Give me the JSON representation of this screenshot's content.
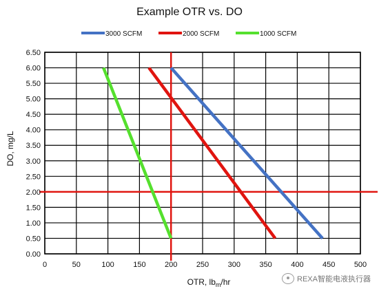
{
  "chart_data": {
    "type": "line",
    "title": "Example OTR vs. DO",
    "xlabel_main": "OTR, lb",
    "xlabel_sub": "m",
    "xlabel_tail": "/hr",
    "ylabel": "DO, mg/L",
    "xlim": [
      0,
      500
    ],
    "ylim": [
      0,
      6.5
    ],
    "xticks": [
      0,
      50,
      100,
      150,
      200,
      250,
      300,
      350,
      400,
      450,
      500
    ],
    "yticks": [
      0.0,
      0.5,
      1.0,
      1.5,
      2.0,
      2.5,
      3.0,
      3.5,
      4.0,
      4.5,
      5.0,
      5.5,
      6.0,
      6.5
    ],
    "grid": true,
    "legend_position": "top",
    "series": [
      {
        "name": "3000 SCFM",
        "color": "#4472C4",
        "points": [
          [
            200,
            6.0
          ],
          [
            440,
            0.5
          ]
        ]
      },
      {
        "name": "2000 SCFM",
        "color": "#E0140F",
        "points": [
          [
            165,
            6.0
          ],
          [
            365,
            0.5
          ]
        ]
      },
      {
        "name": "1000 SCFM",
        "color": "#55E02E",
        "points": [
          [
            93,
            6.0
          ],
          [
            200,
            0.5
          ]
        ]
      }
    ],
    "reference_lines": [
      {
        "axis": "x",
        "value": 200,
        "color": "#E0140F"
      },
      {
        "axis": "y",
        "value": 2.0,
        "color": "#E0140F"
      }
    ]
  },
  "watermark": {
    "text": "REXA智能电液执行器"
  }
}
